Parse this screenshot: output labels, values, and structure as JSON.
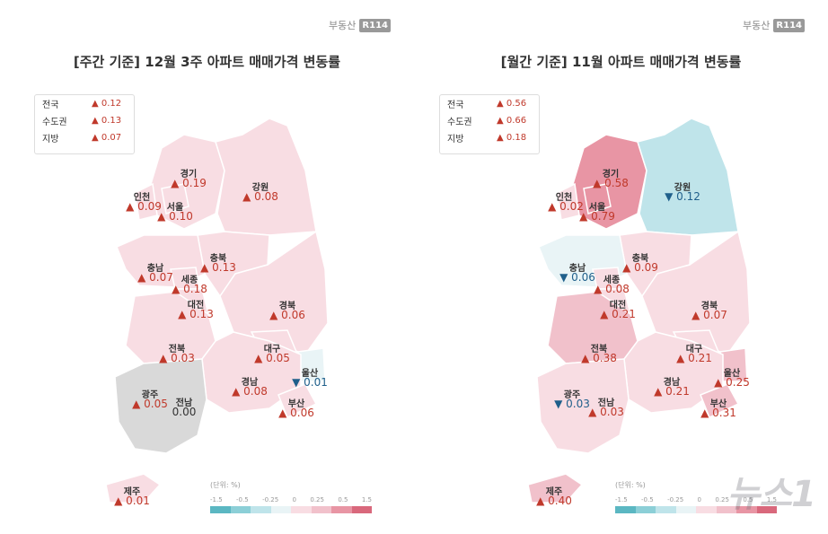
{
  "colors": {
    "up": "#c0392b",
    "down": "#1f5f8b",
    "scale": [
      "#5bb7c2",
      "#8ccfd7",
      "#bfe4ea",
      "#e9f4f6",
      "#f8dde3",
      "#f1c1cb",
      "#e895a4",
      "#d9687c"
    ]
  },
  "panels": [
    {
      "logo": "부동산",
      "logo_badge": "R114",
      "title": "[주간 기준] 12월 3주 아파트 매매가격 변동률",
      "summary": [
        {
          "name": "전국",
          "arrow": "▲",
          "value": "0.12"
        },
        {
          "name": "수도권",
          "arrow": "▲",
          "value": "0.13"
        },
        {
          "name": "지방",
          "arrow": "▲",
          "value": "0.07"
        }
      ],
      "unit": "(단위: %)",
      "scale_ticks": [
        "-1.5",
        "-0.5",
        "-0.25",
        "0",
        "0.25",
        "0.5",
        "1.5"
      ]
    },
    {
      "logo": "부동산",
      "logo_badge": "R114",
      "title": "[월간 기준] 11월 아파트 매매가격 변동률",
      "summary": [
        {
          "name": "전국",
          "arrow": "▲",
          "value": "0.56"
        },
        {
          "name": "수도권",
          "arrow": "▲",
          "value": "0.66"
        },
        {
          "name": "지방",
          "arrow": "▲",
          "value": "0.18"
        }
      ],
      "unit": "(단위: %)",
      "scale_ticks": [
        "-1.5",
        "-0.5",
        "-0.25",
        "0",
        "0.25",
        "0.5",
        "1.5"
      ]
    }
  ],
  "chart_data": [
    {
      "type": "choropleth",
      "title": "[주간 기준] 12월 3주 아파트 매매가격 변동률",
      "unit": "%",
      "regions": [
        {
          "name": "경기",
          "value": 0.19
        },
        {
          "name": "인천",
          "value": 0.09
        },
        {
          "name": "서울",
          "value": 0.1
        },
        {
          "name": "강원",
          "value": 0.08
        },
        {
          "name": "충북",
          "value": 0.13
        },
        {
          "name": "충남",
          "value": 0.07
        },
        {
          "name": "세종",
          "value": 0.18
        },
        {
          "name": "대전",
          "value": 0.13
        },
        {
          "name": "경북",
          "value": 0.06
        },
        {
          "name": "전북",
          "value": 0.03
        },
        {
          "name": "대구",
          "value": 0.05
        },
        {
          "name": "울산",
          "value": -0.01
        },
        {
          "name": "경남",
          "value": 0.08
        },
        {
          "name": "광주",
          "value": 0.05
        },
        {
          "name": "전남",
          "value": 0.0
        },
        {
          "name": "부산",
          "value": 0.06
        },
        {
          "name": "제주",
          "value": 0.01
        }
      ]
    },
    {
      "type": "choropleth",
      "title": "[월간 기준] 11월 아파트 매매가격 변동률",
      "unit": "%",
      "regions": [
        {
          "name": "경기",
          "value": 0.58
        },
        {
          "name": "인천",
          "value": 0.02
        },
        {
          "name": "서울",
          "value": 0.79
        },
        {
          "name": "강원",
          "value": -0.12
        },
        {
          "name": "충북",
          "value": 0.09
        },
        {
          "name": "충남",
          "value": -0.06
        },
        {
          "name": "세종",
          "value": 0.08
        },
        {
          "name": "대전",
          "value": 0.21
        },
        {
          "name": "경북",
          "value": 0.07
        },
        {
          "name": "전북",
          "value": 0.38
        },
        {
          "name": "대구",
          "value": 0.21
        },
        {
          "name": "울산",
          "value": 0.25
        },
        {
          "name": "경남",
          "value": 0.21
        },
        {
          "name": "광주",
          "value": -0.03
        },
        {
          "name": "전남",
          "value": 0.03
        },
        {
          "name": "부산",
          "value": 0.31
        },
        {
          "name": "제주",
          "value": 0.4
        }
      ]
    }
  ],
  "watermark": "뉴스1"
}
